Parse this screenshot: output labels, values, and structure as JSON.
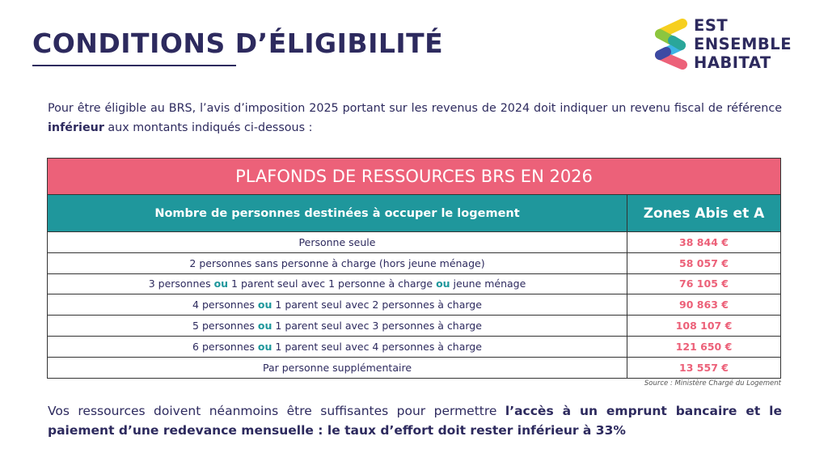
{
  "header": {
    "title": "CONDITIONS D’ÉLIGIBILITÉ",
    "logo_text": [
      "EST",
      "ENSEMBLE",
      "HABITAT"
    ]
  },
  "intro": {
    "part1": "Pour être éligible au BRS, l’avis d’imposition 2025 portant sur les revenus de 2024 doit indiquer un revenu fiscal de référence ",
    "bold": "inférieur",
    "part2": " aux montants indiqués ci-dessous :"
  },
  "table": {
    "title": "PLAFONDS DE RESSOURCES BRS EN 2026",
    "col1_header": "Nombre de personnes destinées à occuper le logement",
    "col2_header": "Zones Abis et A",
    "rows": [
      {
        "label": [
          "Personne seule"
        ],
        "value": "38 844 €"
      },
      {
        "label": [
          "2 personnes sans personne à charge (hors jeune ménage)"
        ],
        "value": "58 057 €"
      },
      {
        "label": [
          "3 personnes ",
          "ou",
          " 1 parent seul avec 1 personne à charge ",
          "ou",
          " jeune ménage"
        ],
        "value": "76 105 €"
      },
      {
        "label": [
          "4 personnes ",
          "ou",
          " 1 parent seul avec 2 personnes à charge"
        ],
        "value": "90 863 €"
      },
      {
        "label": [
          "5 personnes ",
          "ou",
          " 1 parent seul avec 3 personnes à charge"
        ],
        "value": "108 107 €"
      },
      {
        "label": [
          "6 personnes ",
          "ou",
          " 1 parent seul avec 4 personnes à charge"
        ],
        "value": "121 650 €"
      },
      {
        "label": [
          "Par personne supplémentaire"
        ],
        "value": "13 557 €"
      }
    ],
    "source": "Source : Ministère Chargé du Logement"
  },
  "outro": {
    "part1": "Vos ressources doivent néanmoins être suffisantes pour permettre ",
    "bold": "l’accès à un emprunt bancaire et le paiement d’une redevance mensuelle : le taux d’effort doit rester inférieur à 33%"
  },
  "colors": {
    "navy": "#2d2a5e",
    "pink": "#ec6179",
    "teal": "#1f979c"
  }
}
